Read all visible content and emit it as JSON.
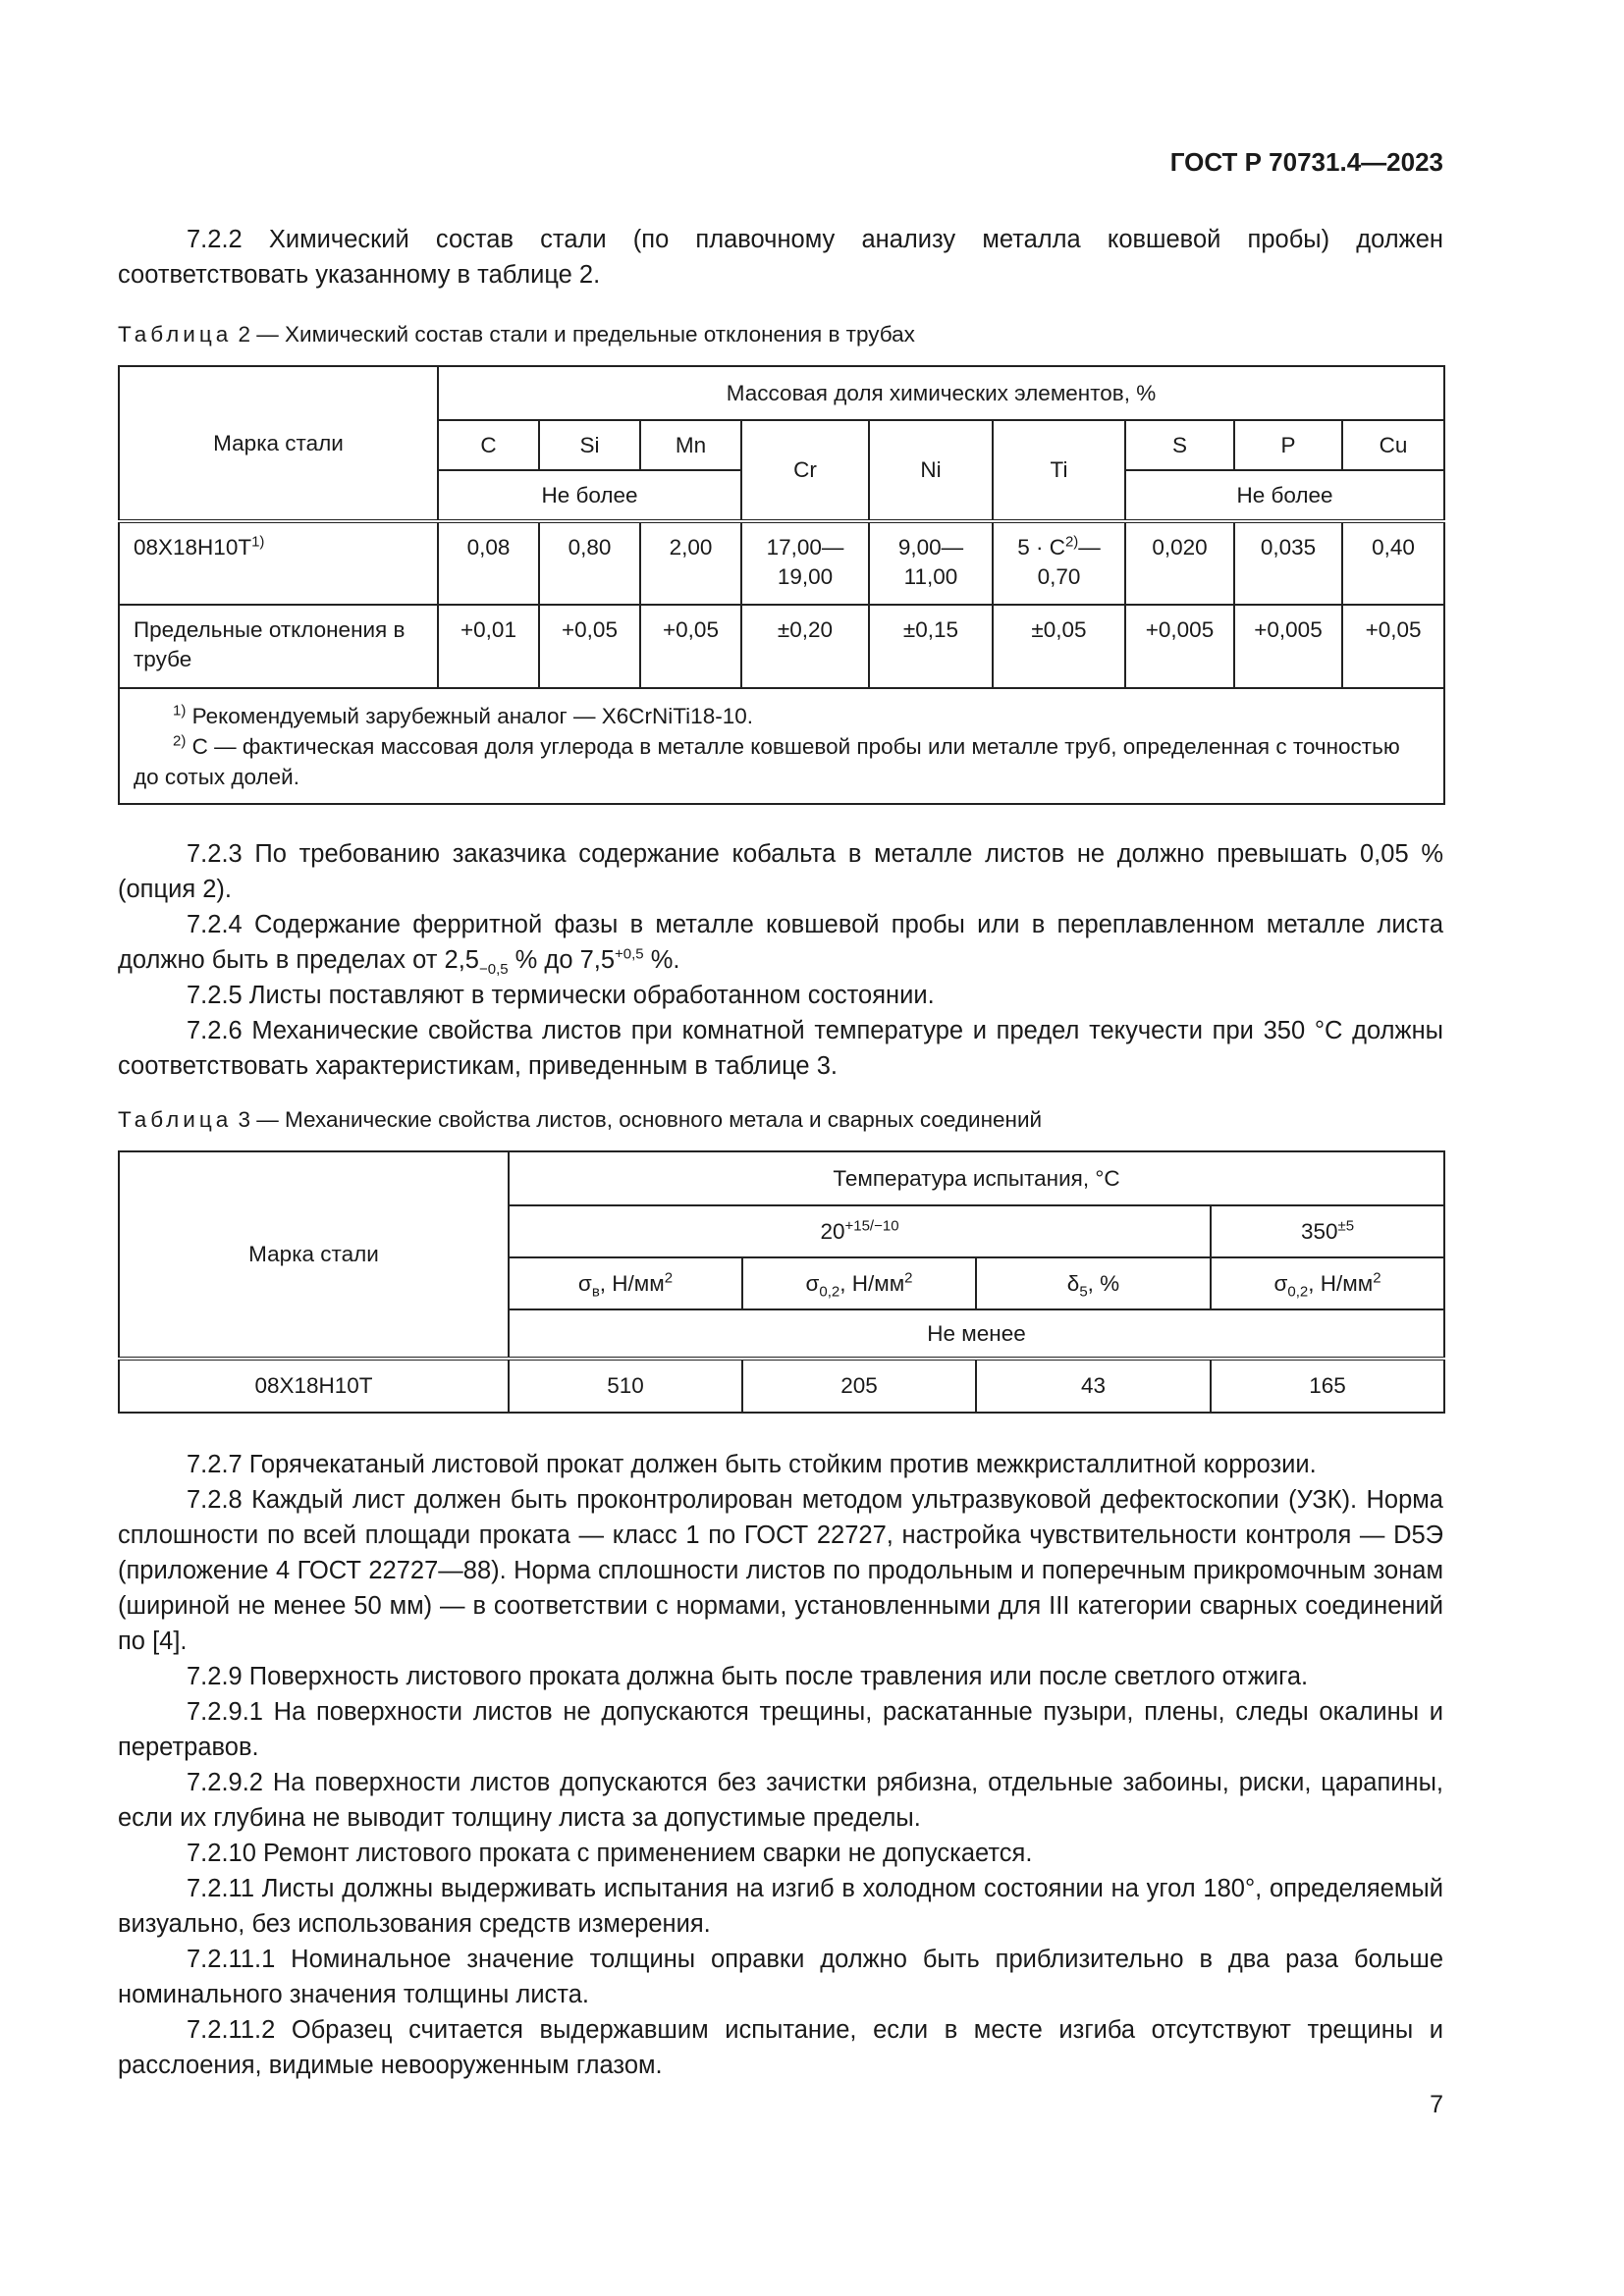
{
  "header": "ГОСТ Р 70731.4—2023",
  "p722": "7.2.2 Химический состав стали (по плавочному анализу металла ковшевой пробы) должен соответствовать указанному в таблице 2.",
  "table2": {
    "caption_word": "Таблица",
    "caption_rest": " 2 — Химический состав стали и предельные отклонения в трубах",
    "grade_header": "Марка стали",
    "group_header": "Массовая доля химических элементов, %",
    "elements": [
      "C",
      "Si",
      "Mn",
      "Cr",
      "Ni",
      "Ti",
      "S",
      "P",
      "Cu"
    ],
    "not_more": "Не более",
    "row1": {
      "grade": "08Х18Н10Т",
      "grade_note": "1)",
      "values": [
        "0,08",
        "0,80",
        "2,00",
        "17,00—19,00",
        "9,00—11,00",
        "",
        "0,020",
        "0,035",
        "0,40"
      ],
      "ti_a": "5 · C",
      "ti_note": "2)",
      "ti_b": "—0,70"
    },
    "row2": {
      "label": "Предельные отклонения в трубе",
      "values": [
        "+0,01",
        "+0,05",
        "+0,05",
        "±0,20",
        "±0,15",
        "±0,05",
        "+0,005",
        "+0,005",
        "+0,05"
      ]
    },
    "footnotes": [
      {
        "mark": "1)",
        "text": " Рекомендуемый зарубежный аналог — X6CrNiTi18-10."
      },
      {
        "mark": "2)",
        "text": " С — фактическая массовая доля углерода в металле ковшевой пробы или металле труб, определенная с точностью до сотых долей."
      }
    ]
  },
  "p723": "7.2.3 По требованию заказчика содержание кобальта в металле листов не должно превышать 0,05 % (опция 2).",
  "p724": {
    "a": "7.2.4 Содержание ферритной фазы в металле ковшевой пробы или в переплавленном металле листа должно быть в пределах от 2,5",
    "sub": "−0,5",
    "b": " % до 7,5",
    "sup": "+0,5",
    "c": " %."
  },
  "p725": "7.2.5 Листы поставляют в термически обработанном состоянии.",
  "p726": "7.2.6 Механические свойства листов при комнатной температуре и предел текучести при 350 °С должны соответствовать характеристикам, приведенным в таблице 3.",
  "table3": {
    "caption_word": "Таблица",
    "caption_rest": " 3 — Механические свойства листов, основного метала и сварных соединений",
    "grade_header": "Марка стали",
    "temp_header": "Температура испытания, °С",
    "t20": "20",
    "t20_sup": "+15/−10",
    "t350": "350",
    "t350_sup": "±5",
    "cols": [
      {
        "sym": "σ",
        "sub": "в",
        "unit": ", Н/мм",
        "sup": "2"
      },
      {
        "sym": "σ",
        "sub": "0,2",
        "unit": ", Н/мм",
        "sup": "2"
      },
      {
        "sym": "δ",
        "sub": "5",
        "unit": ", %",
        "sup": ""
      },
      {
        "sym": "σ",
        "sub": "0,2",
        "unit": ", Н/мм",
        "sup": "2"
      }
    ],
    "not_less": "Не менее",
    "row": {
      "grade": "08Х18Н10Т",
      "values": [
        "510",
        "205",
        "43",
        "165"
      ]
    }
  },
  "paras": [
    "7.2.7 Горячекатаный листовой прокат должен быть стойким против межкристаллитной коррозии.",
    "7.2.8 Каждый лист должен быть проконтролирован методом ультразвуковой дефектоскопии (УЗК). Норма сплошности по всей площади проката — класс 1 по ГОСТ 22727, настройка чувствительности контроля — D5Э (приложение 4 ГОСТ 22727—88). Норма сплошности листов по продольным и поперечным прикромочным зонам (шириной не менее 50 мм) — в соответствии с нормами, установленными для III категории сварных соединений по [4].",
    "7.2.9 Поверхность листового проката должна быть после травления или после светлого отжига.",
    "7.2.9.1 На поверхности листов не допускаются трещины, раскатанные пузыри, плены, следы окалины и перетравов.",
    "7.2.9.2 На поверхности листов допускаются без зачистки рябизна, отдельные забоины, риски, царапины, если их глубина не выводит толщину листа за допустимые пределы.",
    "7.2.10 Ремонт листового проката с применением сварки не допускается.",
    "7.2.11 Листы должны выдерживать испытания на изгиб в холодном состоянии на угол 180°, определяемый визуально, без использования средств измерения.",
    "7.2.11.1 Номинальное значение толщины оправки должно быть приблизительно в два раза больше номинального значения толщины листа.",
    "7.2.11.2 Образец считается выдержавшим испытание, если в месте изгиба отсутствуют трещины и расслоения, видимые невооруженным глазом."
  ],
  "page_number": "7"
}
